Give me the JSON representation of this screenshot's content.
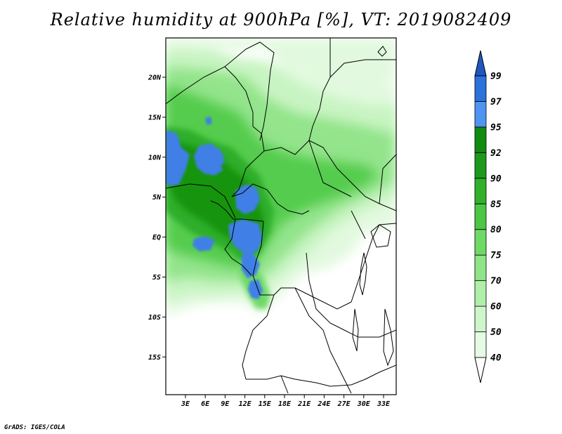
{
  "title": "Relative humidity at 900hPa [%], VT: 2019082409",
  "footer": "GrADS: IGES/COLA",
  "map": {
    "lat_labels": [
      "20N",
      "15N",
      "10N",
      "5N",
      "EQ",
      "5S",
      "10S",
      "15S"
    ],
    "lon_labels": [
      "3E",
      "6E",
      "9E",
      "12E",
      "15E",
      "18E",
      "21E",
      "24E",
      "27E",
      "30E",
      "33E"
    ]
  },
  "colorbar": {
    "levels": [
      "40",
      "50",
      "60",
      "70",
      "75",
      "80",
      "85",
      "90",
      "92",
      "95",
      "97",
      "99"
    ],
    "colors": [
      "#ffffff",
      "#e6fbe4",
      "#cff6cb",
      "#b0efaa",
      "#8ee487",
      "#6fd967",
      "#4cc744",
      "#30b02b",
      "#1d9a1c",
      "#118a10",
      "#4d95f0",
      "#2b72dc",
      "#1f57c0"
    ]
  },
  "colors": {
    "blue_high": "#3f7fe6",
    "frame": "#000000",
    "border": "#000000"
  }
}
